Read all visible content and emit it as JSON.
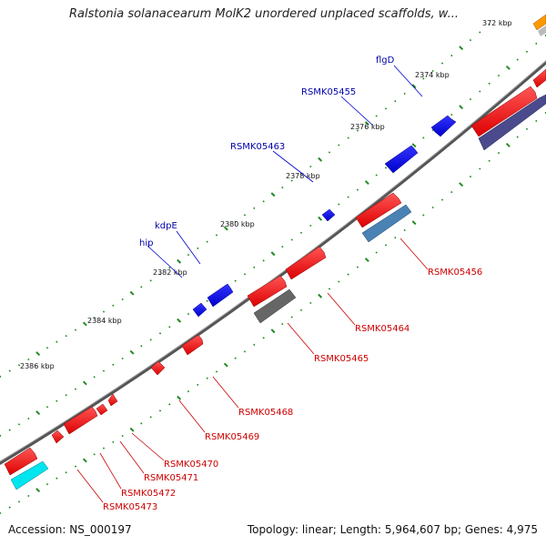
{
  "header": {
    "title": "Ralstonia solanacearum MolK2 unordered unplaced scaffolds, w..."
  },
  "footer": {
    "accession": "Accession: NS_000197",
    "summary": "Topology: linear; Length: 5,964,607 bp; Genes: 4,975"
  },
  "ticks": [
    {
      "label": "372 kbp"
    },
    {
      "label": "2374 kbp"
    },
    {
      "label": "2376 kbp"
    },
    {
      "label": "2378 kbp"
    },
    {
      "label": "2380 kbp"
    },
    {
      "label": "2382 kbp"
    },
    {
      "label": "2384 kbp"
    },
    {
      "label": "2386 kbp"
    }
  ],
  "genes_forward": [
    {
      "name": "flgD"
    },
    {
      "name": "RSMK05455"
    },
    {
      "name": "RSMK05463"
    },
    {
      "name": "kdpE"
    },
    {
      "name": "hip"
    }
  ],
  "genes_reverse": [
    {
      "name": "RSMK05456"
    },
    {
      "name": "RSMK05464"
    },
    {
      "name": "RSMK05465"
    },
    {
      "name": "RSMK05468"
    },
    {
      "name": "RSMK05469"
    },
    {
      "name": "RSMK05470"
    },
    {
      "name": "RSMK05471"
    },
    {
      "name": "RSMK05472"
    },
    {
      "name": "RSMK05473"
    }
  ],
  "colors": {
    "backbone": "#777777",
    "forward_gene": "#0000ee",
    "reverse_gene": "#ee0000",
    "rna_cyan": "#00e5ee",
    "feature_steel": "#4a82b4",
    "feature_slate": "#4a4a8c",
    "feature_gray": "#666666",
    "feature_orange": "#ff9900",
    "tick_green": "#228B22"
  }
}
